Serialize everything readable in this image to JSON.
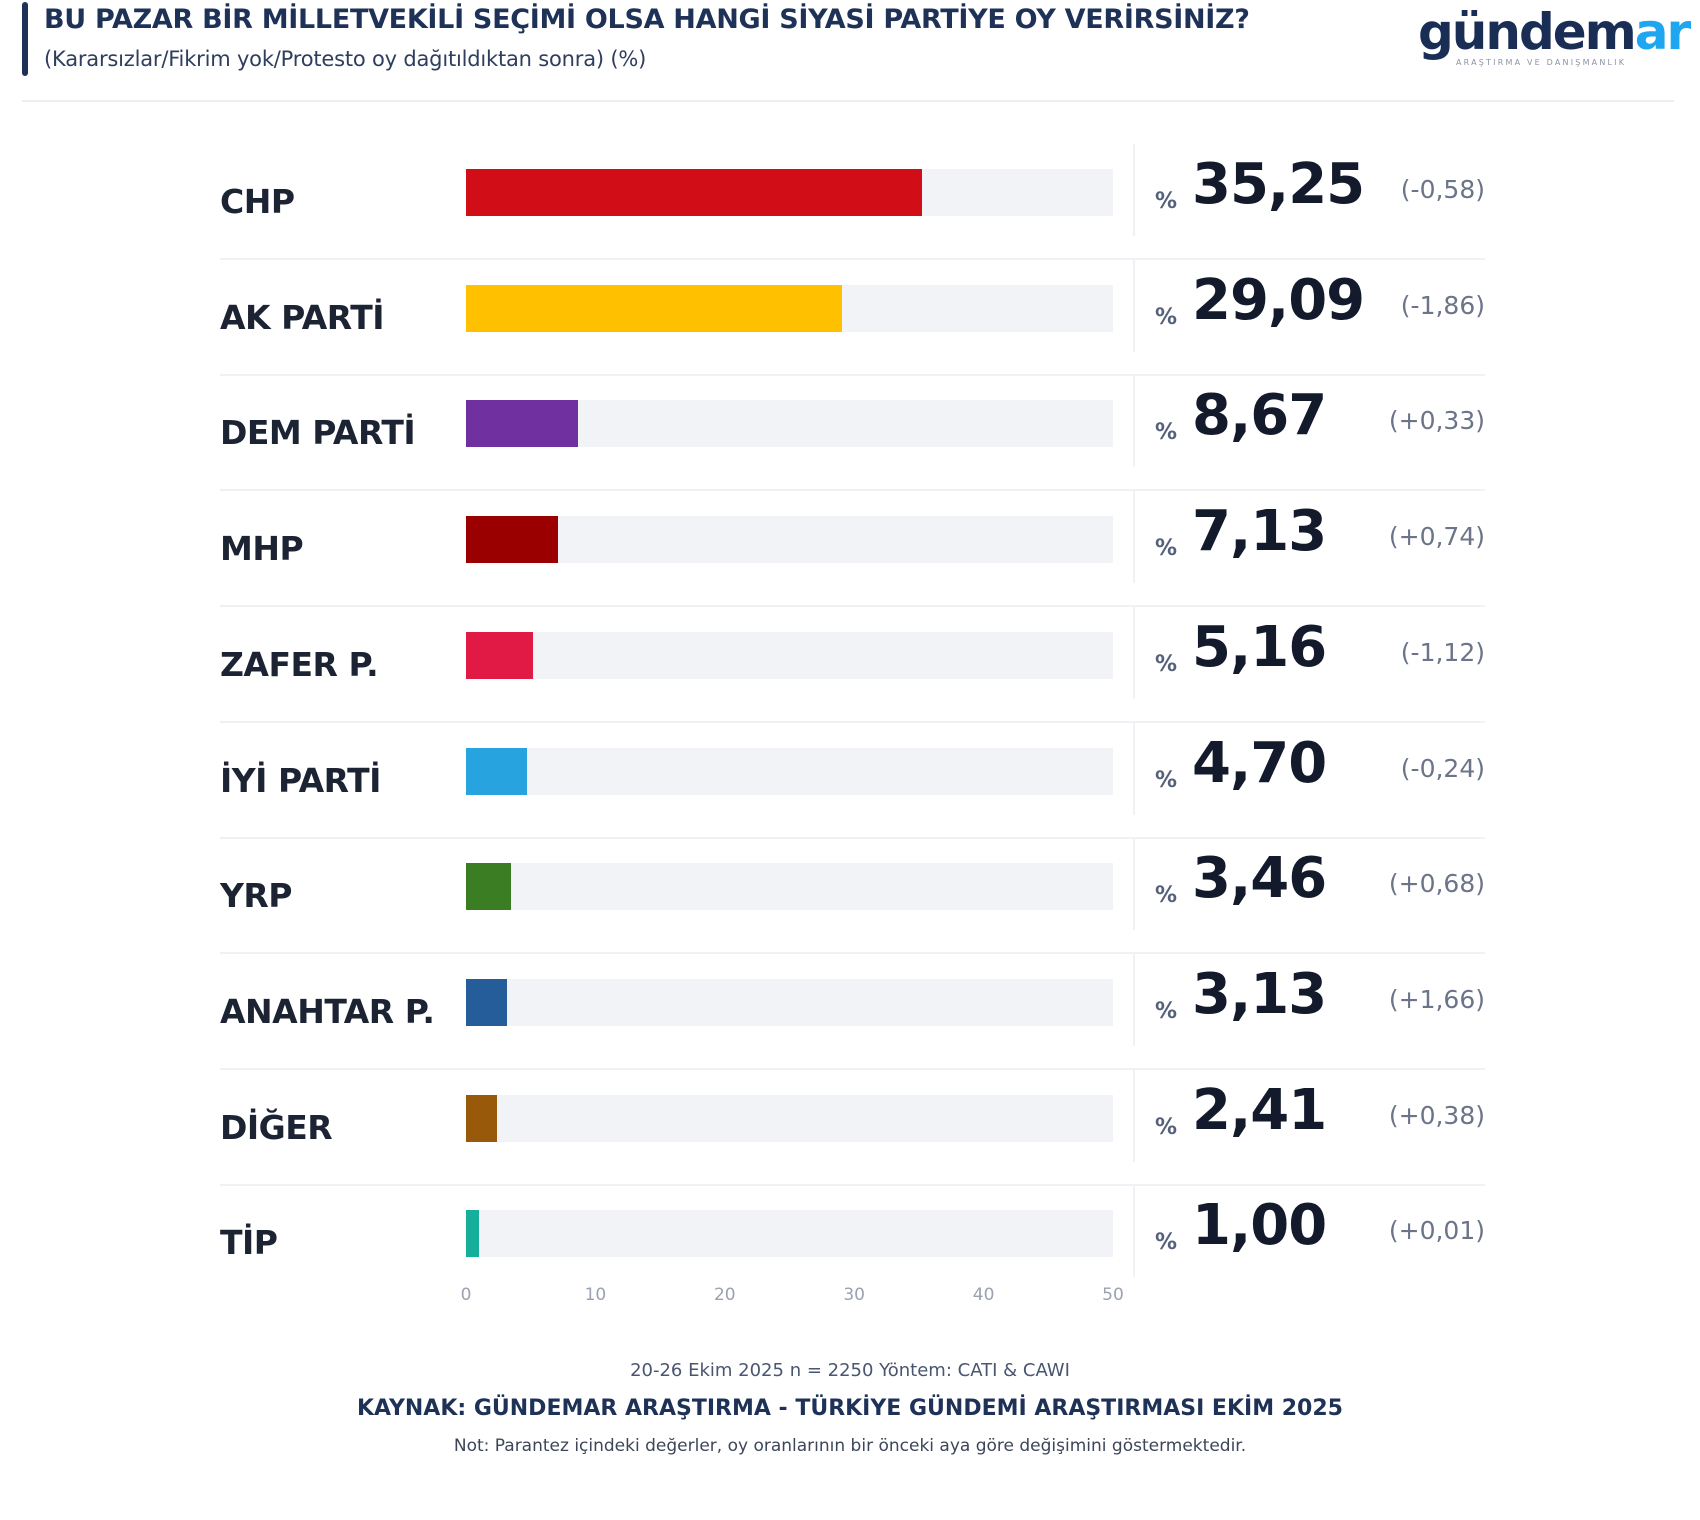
{
  "header": {
    "title": "BU PAZAR BİR MİLLETVEKİLİ SEÇİMİ OLSA HANGİ SİYASİ PARTİYE OY VERİRSİNİZ?",
    "subtitle": "(Kararsızlar/Fikrim yok/Protesto oy dağıtıldıktan sonra) (%)"
  },
  "logo": {
    "main": "gündem",
    "accent": "ar",
    "tagline": "ARAŞTIRMA VE DANIŞMANLIK",
    "colors": {
      "main": "#1a2e55",
      "accent": "#1ea7f0"
    }
  },
  "percent_symbol": "%",
  "rows": [
    {
      "label": "CHP",
      "value_text": "35,25",
      "delta": "(-0,58)",
      "color": "#d10d18"
    },
    {
      "label": "AK PARTİ",
      "value_text": "29,09",
      "delta": "(-1,86)",
      "color": "#ffc000"
    },
    {
      "label": "DEM PARTİ",
      "value_text": "8,67",
      "delta": "(+0,33)",
      "color": "#7030a0"
    },
    {
      "label": "MHP",
      "value_text": "7,13",
      "delta": "(+0,74)",
      "color": "#9b0000"
    },
    {
      "label": "ZAFER P.",
      "value_text": "5,16",
      "delta": "(-1,12)",
      "color": "#e01a44"
    },
    {
      "label": "İYİ PARTİ",
      "value_text": "4,70",
      "delta": "(-0,24)",
      "color": "#27a3df"
    },
    {
      "label": "YRP",
      "value_text": "3,46",
      "delta": "(+0,68)",
      "color": "#3a7d22"
    },
    {
      "label": "ANAHTAR P.",
      "value_text": "3,13",
      "delta": "(+1,66)",
      "color": "#245d99"
    },
    {
      "label": "DİĞER",
      "value_text": "2,41",
      "delta": "(+0,38)",
      "color": "#99590a"
    },
    {
      "label": "TİP",
      "value_text": "1,00",
      "delta": "(+0,01)",
      "color": "#16b09a"
    }
  ],
  "axis": {
    "ticks": [
      "0",
      "10",
      "20",
      "30",
      "40",
      "50"
    ]
  },
  "footer": {
    "meta": "20-26 Ekim 2025 n = 2250 Yöntem: CATI & CAWI",
    "source": "KAYNAK: GÜNDEMAR ARAŞTIRMA - TÜRKİYE GÜNDEMİ ARAŞTIRMASI EKİM 2025",
    "note": "Not: Parantez içindeki değerler, oy oranlarının bir önceki aya göre değişimini göstermektedir."
  },
  "chart_data": {
    "type": "bar",
    "orientation": "horizontal",
    "title": "BU PAZAR BİR MİLLETVEKİLİ SEÇİMİ OLSA HANGİ SİYASİ PARTİYE OY VERİRSİNİZ?",
    "subtitle": "(Kararsızlar/Fikrim yok/Protesto oy dağıtıldıktan sonra) (%)",
    "categories": [
      "CHP",
      "AK PARTİ",
      "DEM PARTİ",
      "MHP",
      "ZAFER P.",
      "İYİ PARTİ",
      "YRP",
      "ANAHTAR P.",
      "DİĞER",
      "TİP"
    ],
    "series": [
      {
        "name": "Oy oranı (%)",
        "values": [
          35.25,
          29.09,
          8.67,
          7.13,
          5.16,
          4.7,
          3.46,
          3.13,
          2.41,
          1.0
        ]
      },
      {
        "name": "Önceki aya göre değişim",
        "values": [
          -0.58,
          -1.86,
          0.33,
          0.74,
          -1.12,
          -0.24,
          0.68,
          1.66,
          0.38,
          0.01
        ]
      }
    ],
    "colors": [
      "#d10d18",
      "#ffc000",
      "#7030a0",
      "#9b0000",
      "#e01a44",
      "#27a3df",
      "#3a7d22",
      "#245d99",
      "#99590a",
      "#16b09a"
    ],
    "xlabel": "",
    "ylabel": "",
    "xlim": [
      0,
      50
    ],
    "xticks": [
      0,
      10,
      20,
      30,
      40,
      50
    ],
    "grid": false,
    "legend": "none",
    "annotations": [
      "20-26 Ekim 2025 n = 2250 Yöntem: CATI & CAWI",
      "KAYNAK: GÜNDEMAR ARAŞTIRMA - TÜRKİYE GÜNDEMİ ARAŞTIRMASI EKİM 2025",
      "Not: Parantez içindeki değerler, oy oranlarının bir önceki aya göre değişimini göstermektedir."
    ]
  }
}
